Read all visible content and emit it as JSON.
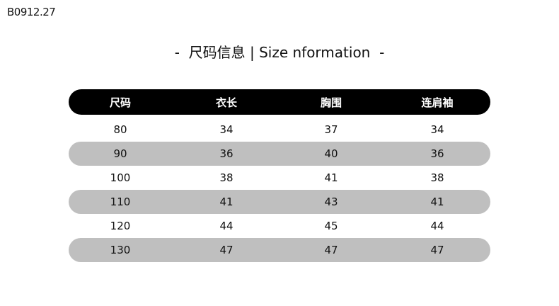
{
  "product_code": "B0912.27",
  "title": "-  尺码信息 | Size nformation  -",
  "table": {
    "headers": [
      "尺码",
      "衣长",
      "胸围",
      "连肩袖"
    ],
    "rows": [
      [
        "80",
        "34",
        "37",
        "34"
      ],
      [
        "90",
        "36",
        "40",
        "36"
      ],
      [
        "100",
        "38",
        "41",
        "38"
      ],
      [
        "110",
        "41",
        "43",
        "41"
      ],
      [
        "120",
        "44",
        "45",
        "44"
      ],
      [
        "130",
        "47",
        "47",
        "47"
      ]
    ],
    "colors": {
      "header_bg": "#000000",
      "stripe": "#bfbfbf"
    }
  }
}
